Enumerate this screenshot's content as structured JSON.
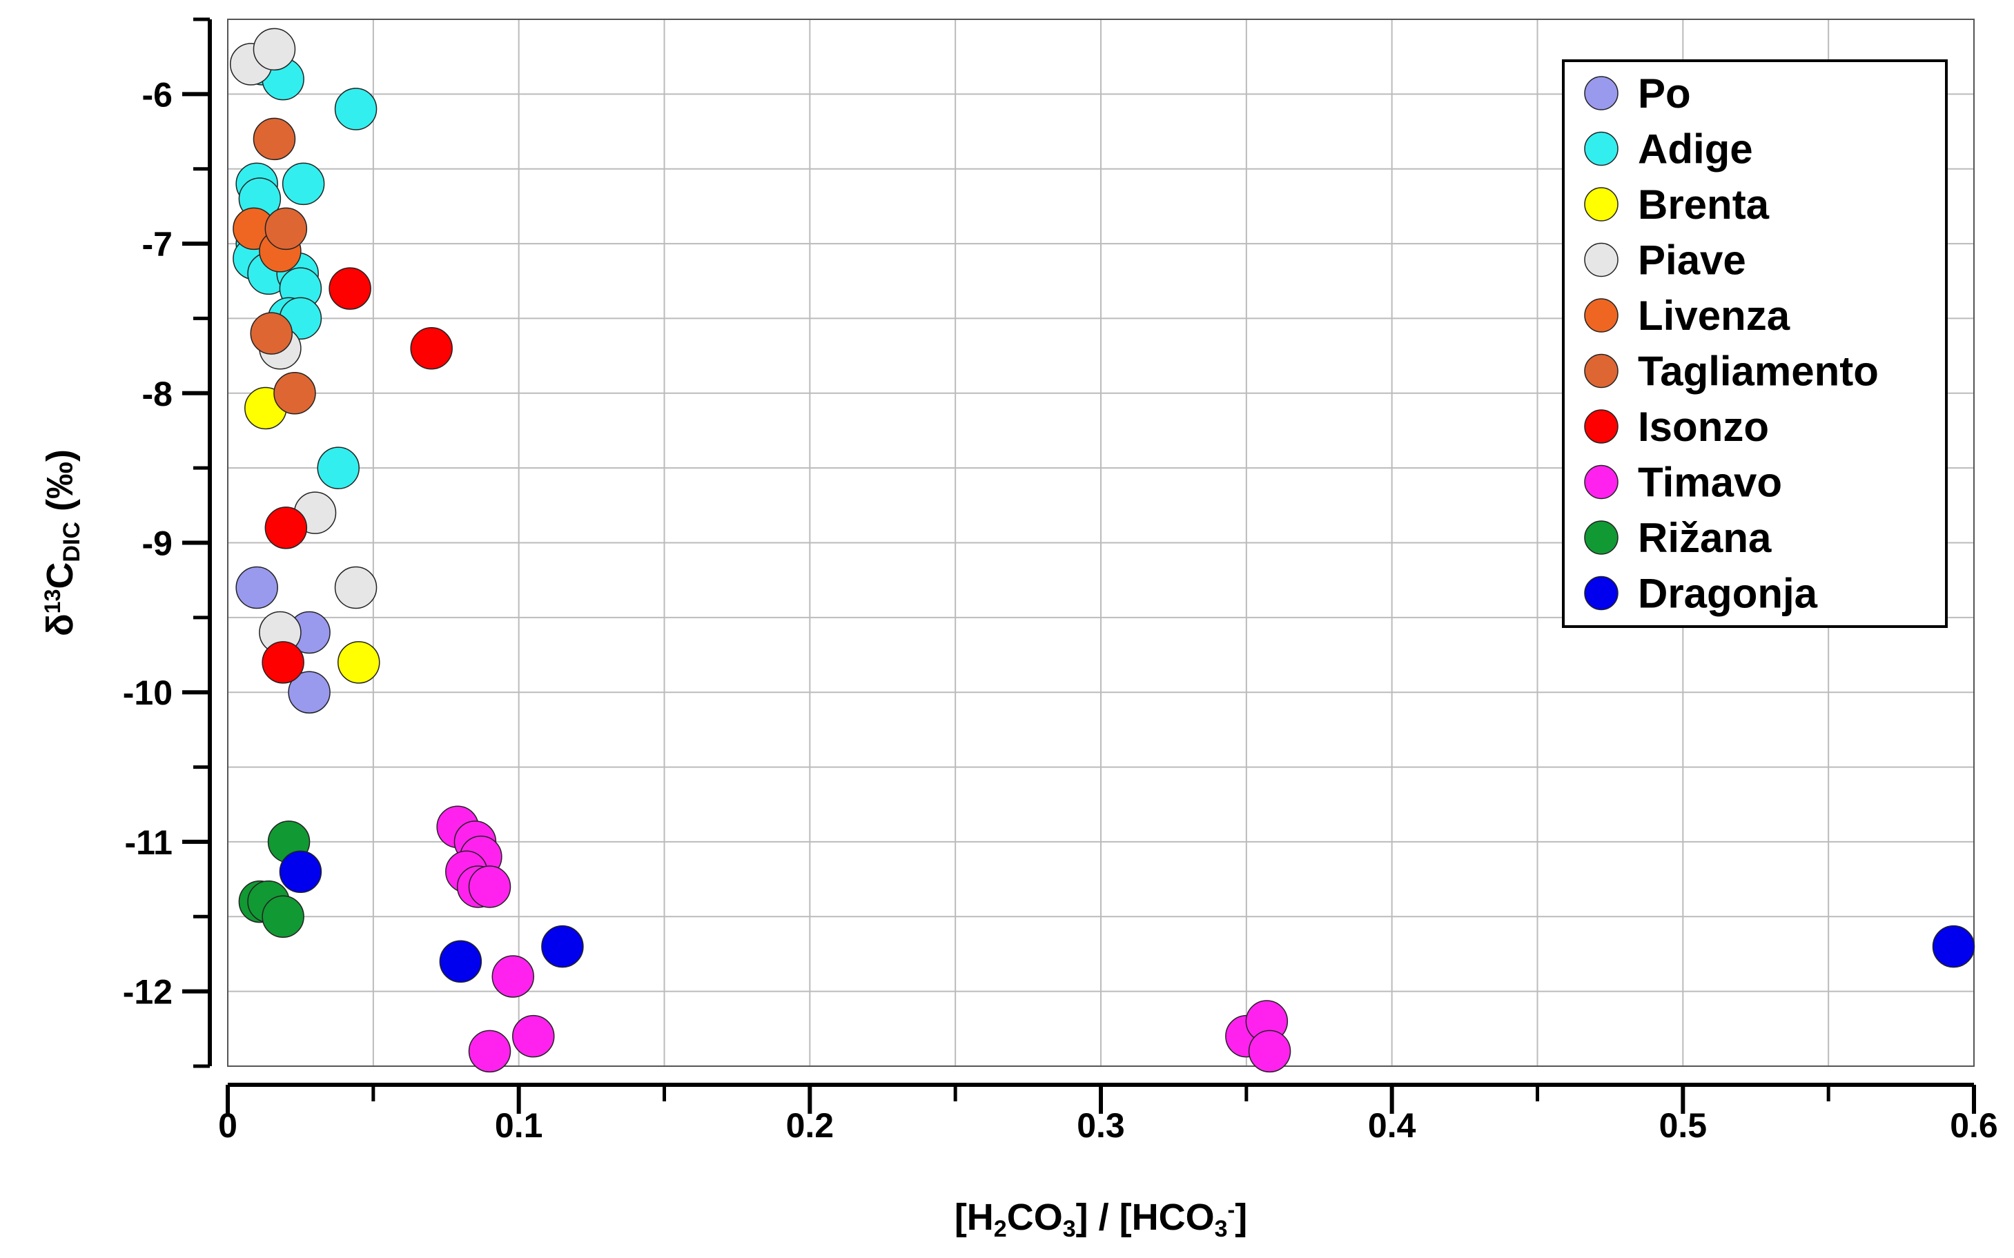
{
  "chart_data": {
    "type": "scatter",
    "title": "",
    "xlabel": {
      "parts": [
        "[H",
        "2",
        "CO",
        "3",
        "] / [HCO",
        "3",
        "-",
        "]"
      ]
    },
    "ylabel": {
      "parts": [
        "δ",
        "13",
        "C",
        "DIC",
        " (‰)"
      ]
    },
    "xlim": [
      0,
      0.6
    ],
    "ylim": [
      -12.5,
      -5.5
    ],
    "grid": true,
    "x_ticks": [
      {
        "value": 0,
        "label": "0"
      },
      {
        "value": 0.1,
        "label": "0.1"
      },
      {
        "value": 0.2,
        "label": "0.2"
      },
      {
        "value": 0.3,
        "label": "0.3"
      },
      {
        "value": 0.4,
        "label": "0.4"
      },
      {
        "value": 0.5,
        "label": "0.5"
      },
      {
        "value": 0.6,
        "label": "0.6"
      }
    ],
    "x_minor_ticks": [
      0.05,
      0.15,
      0.25,
      0.35,
      0.45,
      0.55
    ],
    "y_ticks": [
      {
        "value": -6,
        "label": "-6"
      },
      {
        "value": -7,
        "label": "-7"
      },
      {
        "value": -8,
        "label": "-8"
      },
      {
        "value": -9,
        "label": "-9"
      },
      {
        "value": -10,
        "label": "-10"
      },
      {
        "value": -11,
        "label": "-11"
      },
      {
        "value": -12,
        "label": "-12"
      }
    ],
    "y_minor_ticks": [
      -5.5,
      -6.5,
      -7.5,
      -8.5,
      -9.5,
      -10.5,
      -11.5,
      -12.5
    ],
    "legend_position": "top-right",
    "series": [
      {
        "name": "Po",
        "color": "#9999ee",
        "points": [
          [
            0.01,
            -9.3
          ],
          [
            0.028,
            -9.6
          ],
          [
            0.028,
            -10.0
          ]
        ]
      },
      {
        "name": "Adige",
        "color": "#33eeee",
        "points": [
          [
            0.012,
            -5.8
          ],
          [
            0.019,
            -5.9
          ],
          [
            0.044,
            -6.1
          ],
          [
            0.01,
            -6.6
          ],
          [
            0.026,
            -6.6
          ],
          [
            0.011,
            -6.7
          ],
          [
            0.01,
            -7.0
          ],
          [
            0.009,
            -7.1
          ],
          [
            0.014,
            -7.2
          ],
          [
            0.024,
            -7.2
          ],
          [
            0.025,
            -7.3
          ],
          [
            0.021,
            -7.5
          ],
          [
            0.025,
            -7.5
          ],
          [
            0.038,
            -8.5
          ]
        ]
      },
      {
        "name": "Brenta",
        "color": "#ffff00",
        "points": [
          [
            0.013,
            -8.1
          ],
          [
            0.045,
            -9.8
          ]
        ]
      },
      {
        "name": "Piave",
        "color": "#e6e6e6",
        "points": [
          [
            0.008,
            -5.8
          ],
          [
            0.016,
            -5.7
          ],
          [
            0.018,
            -7.7
          ],
          [
            0.03,
            -8.8
          ],
          [
            0.044,
            -9.3
          ],
          [
            0.018,
            -9.6
          ]
        ]
      },
      {
        "name": "Livenza",
        "color": "#ee6622",
        "points": [
          [
            0.009,
            -6.9
          ],
          [
            0.018,
            -7.05
          ]
        ]
      },
      {
        "name": "Tagliamento",
        "color": "#dd6633",
        "points": [
          [
            0.016,
            -6.3
          ],
          [
            0.02,
            -6.9
          ],
          [
            0.015,
            -7.6
          ],
          [
            0.023,
            -8.0
          ]
        ]
      },
      {
        "name": "Isonzo",
        "color": "#ff0000",
        "points": [
          [
            0.042,
            -7.3
          ],
          [
            0.07,
            -7.7
          ],
          [
            0.02,
            -8.9
          ],
          [
            0.019,
            -9.8
          ]
        ]
      },
      {
        "name": "Timavo",
        "color": "#ff22ee",
        "points": [
          [
            0.079,
            -10.9
          ],
          [
            0.085,
            -11.0
          ],
          [
            0.087,
            -11.1
          ],
          [
            0.082,
            -11.2
          ],
          [
            0.086,
            -11.3
          ],
          [
            0.09,
            -11.3
          ],
          [
            0.098,
            -11.9
          ],
          [
            0.105,
            -12.3
          ],
          [
            0.09,
            -12.4
          ],
          [
            0.35,
            -12.3
          ],
          [
            0.357,
            -12.2
          ],
          [
            0.358,
            -12.4
          ]
        ]
      },
      {
        "name": "Rižana",
        "color": "#119933",
        "points": [
          [
            0.021,
            -11.0
          ],
          [
            0.011,
            -11.4
          ],
          [
            0.014,
            -11.4
          ],
          [
            0.019,
            -11.5
          ]
        ]
      },
      {
        "name": "Dragonja",
        "color": "#0000ee",
        "points": [
          [
            0.025,
            -11.2
          ],
          [
            0.08,
            -11.8
          ],
          [
            0.115,
            -11.7
          ],
          [
            0.593,
            -11.7
          ]
        ]
      }
    ]
  }
}
